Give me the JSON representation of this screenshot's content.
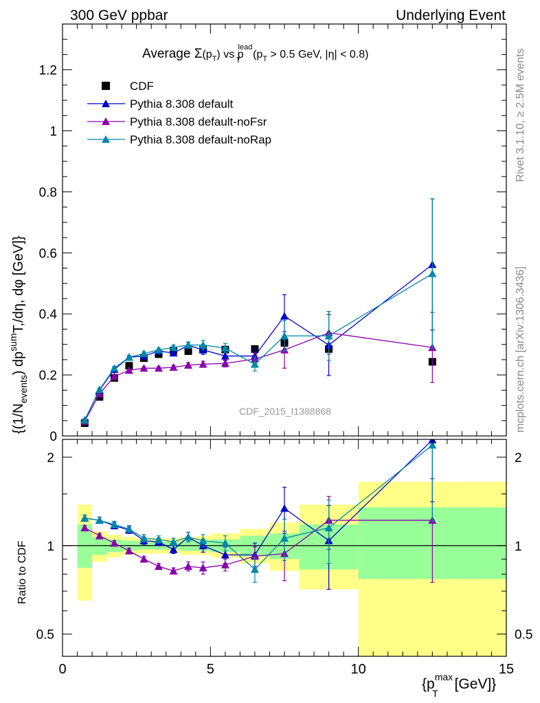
{
  "header": {
    "left": "300 GeV ppbar",
    "right": "Underlying Event"
  },
  "side_labels": {
    "rivet": "Rivet 3.1.10, ≥ 2.5M events",
    "mcplots": "mcplots.cern.ch [arXiv:1306.3436]"
  },
  "chart_data": [
    {
      "type": "scatter",
      "panel": "main",
      "title": "Average Σ(p_T) vs p_T^lead (p_T > 0.5 GeV, |η| < 0.8)",
      "title_parts": {
        "a": "Average ",
        "sigma": "Σ",
        "b": "(p",
        "t": "T",
        "c": ") vs p",
        "lead": "lead",
        "d": "(p",
        "e": " > 0.5 GeV, |",
        "eta": "η",
        "f": "| < 0.8)"
      },
      "ylabel": "{(1/N_events) dp^sum T,/dη, dφ [GeV]}",
      "ylabel_parts": {
        "a": "{(1/N",
        "events": "events",
        "b": ") dp",
        "sum": "sum",
        "c": "T,/dη, dφ [GeV]}"
      },
      "watermark": "CDF_2015_I1388868",
      "ylim": [
        0,
        1.35
      ],
      "xlim": [
        0,
        15
      ],
      "yticks": [
        0,
        0.2,
        0.4,
        0.6,
        0.8,
        1,
        1.2
      ],
      "ytick_labels": [
        "0",
        "0.2",
        "0.4",
        "0.6",
        "0.8",
        "1",
        "1.2"
      ],
      "legend": "top-left",
      "series": [
        {
          "name": "CDF",
          "marker": "square",
          "color": "#000000",
          "x": [
            0.75,
            1.25,
            1.75,
            2.25,
            2.75,
            3.25,
            3.75,
            4.25,
            4.75,
            5.5,
            6.5,
            7.5,
            9.0,
            12.5
          ],
          "y": [
            0.042,
            0.128,
            0.19,
            0.23,
            0.255,
            0.268,
            0.28,
            0.278,
            0.283,
            0.283,
            0.285,
            0.305,
            0.285,
            0.243
          ],
          "err": [
            0,
            0,
            0,
            0,
            0,
            0,
            0,
            0,
            0,
            0,
            0,
            0,
            0,
            0
          ]
        },
        {
          "name": "Pythia 8.308 default",
          "marker": "triangle",
          "color": "#0000cc",
          "x": [
            0.75,
            1.25,
            1.75,
            2.25,
            2.75,
            3.25,
            3.75,
            4.25,
            4.75,
            5.5,
            6.5,
            7.5,
            9.0,
            12.5
          ],
          "y": [
            0.052,
            0.15,
            0.218,
            0.258,
            0.262,
            0.278,
            0.272,
            0.297,
            0.282,
            0.262,
            0.262,
            0.393,
            0.298,
            0.562
          ],
          "err": [
            0.005,
            0.005,
            0.006,
            0.006,
            0.006,
            0.006,
            0.008,
            0.01,
            0.015,
            0.015,
            0.025,
            0.07,
            0.1,
            0.215
          ]
        },
        {
          "name": "Pythia 8.308 default-noFsr",
          "marker": "triangle",
          "color": "#8800aa",
          "x": [
            0.75,
            1.25,
            1.75,
            2.25,
            2.75,
            3.25,
            3.75,
            4.25,
            4.75,
            5.5,
            6.5,
            7.5,
            9.0,
            12.5
          ],
          "y": [
            0.048,
            0.138,
            0.195,
            0.215,
            0.222,
            0.222,
            0.225,
            0.232,
            0.235,
            0.238,
            0.252,
            0.282,
            0.338,
            0.29
          ],
          "err": [
            0.005,
            0.005,
            0.005,
            0.005,
            0.005,
            0.005,
            0.006,
            0.008,
            0.01,
            0.012,
            0.02,
            0.06,
            0.07,
            0.115
          ]
        },
        {
          "name": "Pythia 8.308 default-noRap",
          "marker": "triangle",
          "color": "#0088aa",
          "x": [
            0.75,
            1.25,
            1.75,
            2.25,
            2.75,
            3.25,
            3.75,
            4.25,
            4.75,
            5.5,
            6.5,
            7.5,
            9.0,
            12.5
          ],
          "y": [
            0.052,
            0.152,
            0.222,
            0.258,
            0.27,
            0.282,
            0.29,
            0.298,
            0.298,
            0.288,
            0.235,
            0.328,
            0.328,
            0.532
          ],
          "err": [
            0.005,
            0.005,
            0.006,
            0.006,
            0.006,
            0.006,
            0.008,
            0.01,
            0.015,
            0.015,
            0.022,
            0.05,
            0.08,
            0.245
          ]
        }
      ]
    },
    {
      "type": "scatter",
      "panel": "ratio",
      "ylabel": "Ratio to CDF",
      "xlabel": "{p_T^max [GeV]}",
      "xlabel_parts": {
        "a": "{p",
        "max": "max",
        "t": "T",
        "b": " [GeV]}"
      },
      "ylog": true,
      "ylim": [
        0.42,
        2.3
      ],
      "xlim": [
        0,
        15
      ],
      "yticks": [
        0.5,
        1,
        2
      ],
      "ytick_labels": [
        "0.5",
        "1",
        "2"
      ],
      "xticks": [
        0,
        5,
        10,
        15
      ],
      "xtick_labels": [
        "0",
        "5",
        "10",
        "15"
      ],
      "bands": [
        {
          "x0": 0.5,
          "x1": 1.0,
          "y_lo": 0.65,
          "y_hi": 1.38,
          "g_lo": 0.84,
          "g_hi": 1.18
        },
        {
          "x0": 1.0,
          "x1": 1.5,
          "y_lo": 0.88,
          "y_hi": 1.12,
          "g_lo": 0.93,
          "g_hi": 1.07
        },
        {
          "x0": 1.5,
          "x1": 2.0,
          "y_lo": 0.91,
          "y_hi": 1.09,
          "g_lo": 0.95,
          "g_hi": 1.05
        },
        {
          "x0": 2.0,
          "x1": 2.5,
          "y_lo": 0.93,
          "y_hi": 1.07,
          "g_lo": 0.96,
          "g_hi": 1.04
        },
        {
          "x0": 2.5,
          "x1": 3.0,
          "y_lo": 0.94,
          "y_hi": 1.06,
          "g_lo": 0.97,
          "g_hi": 1.03
        },
        {
          "x0": 3.0,
          "x1": 3.5,
          "y_lo": 0.94,
          "y_hi": 1.06,
          "g_lo": 0.97,
          "g_hi": 1.03
        },
        {
          "x0": 3.5,
          "x1": 4.0,
          "y_lo": 0.94,
          "y_hi": 1.06,
          "g_lo": 0.97,
          "g_hi": 1.03
        },
        {
          "x0": 4.0,
          "x1": 4.5,
          "y_lo": 0.93,
          "y_hi": 1.07,
          "g_lo": 0.96,
          "g_hi": 1.04
        },
        {
          "x0": 4.5,
          "x1": 5.0,
          "y_lo": 0.93,
          "y_hi": 1.08,
          "g_lo": 0.96,
          "g_hi": 1.04
        },
        {
          "x0": 5.0,
          "x1": 6.0,
          "y_lo": 0.91,
          "y_hi": 1.1,
          "g_lo": 0.95,
          "g_hi": 1.05
        },
        {
          "x0": 6.0,
          "x1": 7.0,
          "y_lo": 0.87,
          "y_hi": 1.14,
          "g_lo": 0.92,
          "g_hi": 1.08
        },
        {
          "x0": 7.0,
          "x1": 8.0,
          "y_lo": 0.82,
          "y_hi": 1.2,
          "g_lo": 0.9,
          "g_hi": 1.1
        },
        {
          "x0": 8.0,
          "x1": 10.0,
          "y_lo": 0.71,
          "y_hi": 1.38,
          "g_lo": 0.83,
          "g_hi": 1.18
        },
        {
          "x0": 10.0,
          "x1": 15.0,
          "y_lo": 0.42,
          "y_hi": 1.65,
          "g_lo": 0.77,
          "g_hi": 1.35
        }
      ],
      "series": [
        {
          "name": "Pythia 8.308 default",
          "color": "#0000cc",
          "x": [
            0.75,
            1.25,
            1.75,
            2.25,
            2.75,
            3.25,
            3.75,
            4.25,
            4.75,
            5.5,
            6.5,
            7.5,
            9.0,
            12.5
          ],
          "y": [
            1.24,
            1.22,
            1.17,
            1.13,
            1.04,
            1.03,
            0.97,
            1.07,
            1.0,
            0.93,
            0.93,
            1.34,
            1.04,
            2.29
          ],
          "err": [
            0.03,
            0.03,
            0.03,
            0.03,
            0.03,
            0.03,
            0.03,
            0.04,
            0.05,
            0.06,
            0.09,
            0.24,
            0.33,
            0.88
          ]
        },
        {
          "name": "Pythia 8.308 default-noFsr",
          "color": "#8800aa",
          "x": [
            0.75,
            1.25,
            1.75,
            2.25,
            2.75,
            3.25,
            3.75,
            4.25,
            4.75,
            5.5,
            6.5,
            7.5,
            9.0,
            12.5
          ],
          "y": [
            1.15,
            1.08,
            1.02,
            0.96,
            0.9,
            0.85,
            0.82,
            0.85,
            0.84,
            0.86,
            0.92,
            0.94,
            1.22,
            1.22
          ],
          "err": [
            0.02,
            0.02,
            0.02,
            0.02,
            0.02,
            0.02,
            0.02,
            0.03,
            0.04,
            0.04,
            0.07,
            0.18,
            0.25,
            0.47
          ]
        },
        {
          "name": "Pythia 8.308 default-noRap",
          "color": "#0088aa",
          "x": [
            0.75,
            1.25,
            1.75,
            2.25,
            2.75,
            3.25,
            3.75,
            4.25,
            4.75,
            5.5,
            6.5,
            7.5,
            9.0,
            12.5
          ],
          "y": [
            1.24,
            1.22,
            1.18,
            1.14,
            1.06,
            1.05,
            1.03,
            1.07,
            1.04,
            1.02,
            0.83,
            1.06,
            1.15,
            2.2
          ],
          "err": [
            0.03,
            0.03,
            0.03,
            0.03,
            0.03,
            0.03,
            0.03,
            0.04,
            0.05,
            0.06,
            0.08,
            0.17,
            0.28,
            0.99
          ]
        }
      ]
    }
  ]
}
